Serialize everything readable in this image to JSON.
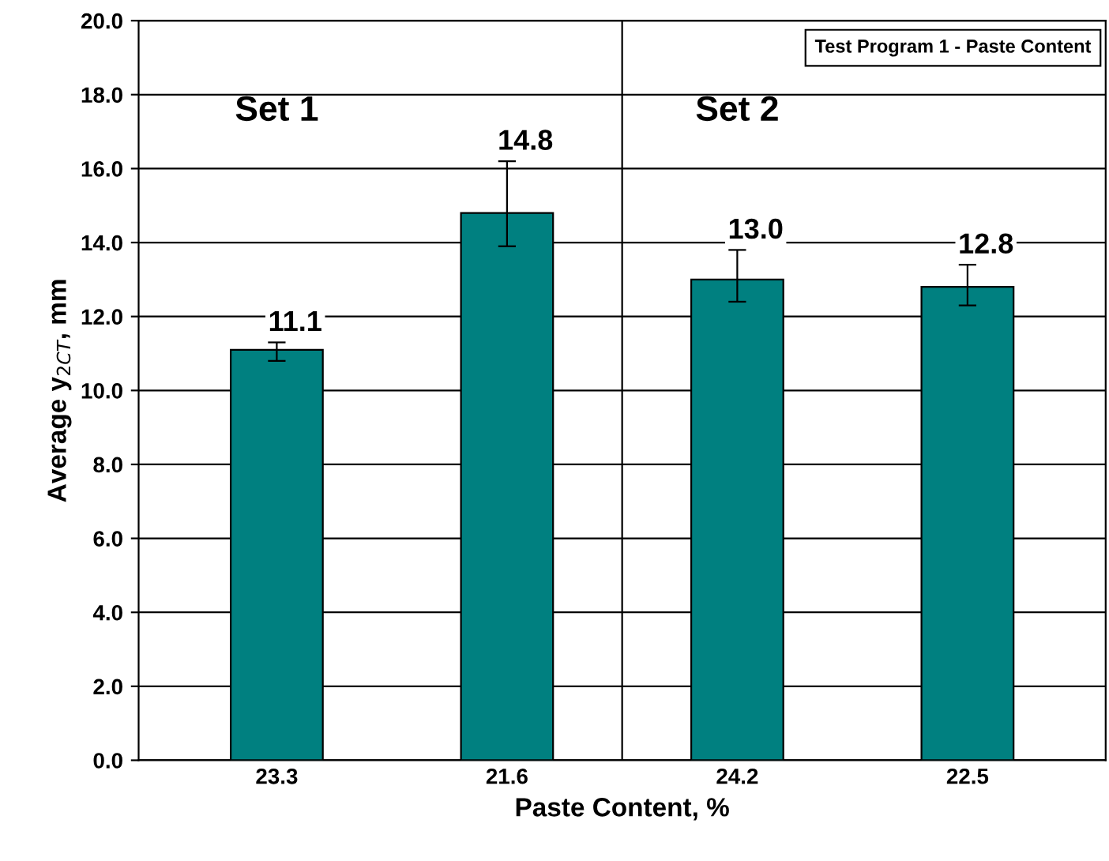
{
  "chart_data": {
    "type": "bar",
    "title": "Test Program 1 - Paste Content",
    "xlabel": "Paste Content, %",
    "ylabel": "Average y$_{2CT}$, mm",
    "categories": [
      "23.3",
      "21.6",
      "24.2",
      "22.5"
    ],
    "values": [
      11.1,
      14.8,
      13.0,
      12.8
    ],
    "color": "#008080",
    "errors": [
      [
        10.8,
        11.3
      ],
      [
        13.9,
        16.2
      ],
      [
        12.4,
        13.8
      ],
      [
        12.3,
        13.4
      ]
    ],
    "value_labels": [
      "11.1",
      "14.8",
      "13.0",
      "12.8"
    ],
    "ylim": [
      0,
      20
    ],
    "yticks": [
      {
        "value": 0,
        "label": "0.0"
      },
      {
        "value": 2,
        "label": "2.0"
      },
      {
        "value": 4,
        "label": "4.0"
      },
      {
        "value": 6,
        "label": "6.0"
      },
      {
        "value": 8,
        "label": "8.0"
      },
      {
        "value": 10,
        "label": "10.0"
      },
      {
        "value": 12,
        "label": "12.0"
      },
      {
        "value": 14,
        "label": "14.0"
      },
      {
        "value": 16,
        "label": "16.0"
      },
      {
        "value": 18,
        "label": "18.0"
      },
      {
        "value": 20,
        "label": "20.0"
      }
    ],
    "grid": "y",
    "annotations": [
      "Set 1",
      "Set 2"
    ]
  }
}
